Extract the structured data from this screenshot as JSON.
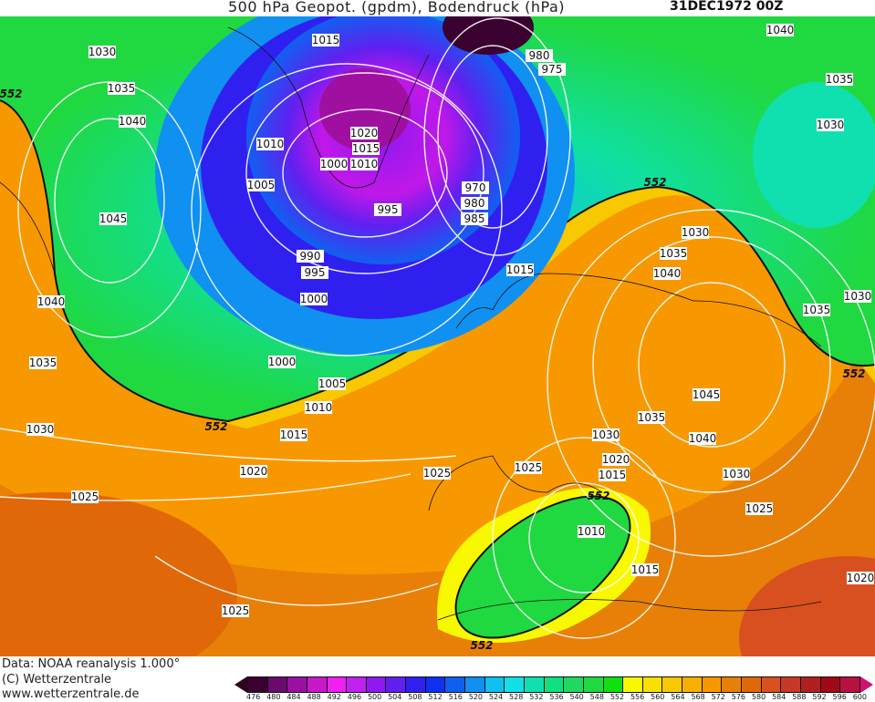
{
  "header": {
    "title": "500 hPa Geopot. (gpdm), Bodendruck (hPa)",
    "date": "31DEC1972 00Z"
  },
  "footer": {
    "data_source": "Data: NOAA reanalysis 1.000°",
    "copyright": "(C) Wetterzentrale",
    "url": "www.wetterzentrale.de"
  },
  "legend": {
    "ticks": [
      "476",
      "480",
      "484",
      "488",
      "492",
      "496",
      "500",
      "504",
      "508",
      "512",
      "516",
      "520",
      "524",
      "528",
      "532",
      "536",
      "540",
      "548",
      "552",
      "556",
      "560",
      "564",
      "568",
      "572",
      "576",
      "580",
      "584",
      "588",
      "592",
      "596",
      "600"
    ],
    "colors": [
      "#3a0030",
      "#6a0a6a",
      "#9a10a0",
      "#c818c8",
      "#f020f0",
      "#c020f0",
      "#9018f0",
      "#6020f0",
      "#3020f0",
      "#1030f0",
      "#1060f0",
      "#1090f0",
      "#10c0f0",
      "#10e0e8",
      "#10e0b0",
      "#10e080",
      "#20d860",
      "#20d840",
      "#10e010",
      "#f8f800",
      "#f8e000",
      "#f8c800",
      "#f8b000",
      "#f89800",
      "#e88008",
      "#e06808",
      "#d85020",
      "#c83828",
      "#b02020",
      "#a00818",
      "#b81040"
    ],
    "low_arrow_color": "#300020",
    "high_arrow_color": "#d01070"
  },
  "map": {
    "contour_552_label": "552",
    "isobar_labels": [
      "1015",
      "1030",
      "1035",
      "1040",
      "552",
      "1045",
      "1040",
      "1035",
      "1030",
      "1025",
      "1020",
      "1015",
      "1010",
      "1005",
      "1000",
      "1000",
      "995",
      "990",
      "1010",
      "1005",
      "1000",
      "1020",
      "1015",
      "1010",
      "995",
      "980",
      "975",
      "970",
      "980",
      "985",
      "552",
      "1040",
      "1035",
      "1030",
      "1030",
      "1035",
      "1040",
      "1015",
      "1030",
      "1035",
      "552",
      "1045",
      "1035",
      "1040",
      "1030",
      "1020",
      "1015",
      "1030",
      "1025",
      "1025",
      "552",
      "1010",
      "1015",
      "1025",
      "1020",
      "1025",
      "552",
      "552"
    ]
  }
}
